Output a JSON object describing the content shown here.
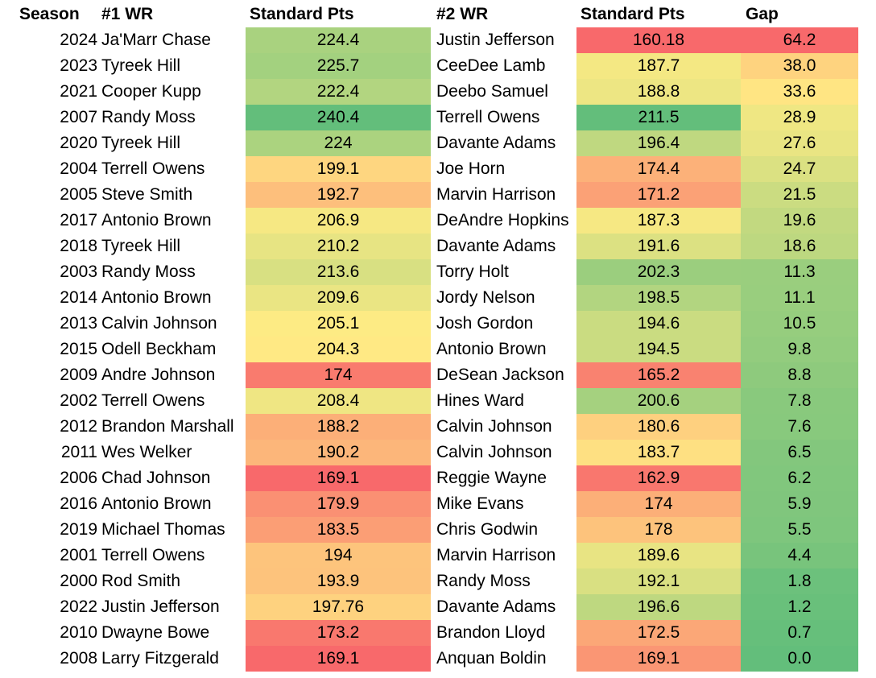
{
  "headers": {
    "season": "Season",
    "wr1": "#1 WR",
    "pts1": "Standard Pts",
    "wr2": "#2 WR",
    "pts2": "Standard Pts",
    "gap": "Gap"
  },
  "chart_data": {
    "type": "table",
    "columns": [
      "Season",
      "#1 WR",
      "Standard Pts",
      "#2 WR",
      "Standard Pts",
      "Gap"
    ],
    "rows": [
      {
        "season": "2024",
        "wr1": "Ja'Marr Chase",
        "pts1": "224.4",
        "wr2": "Justin Jefferson",
        "pts2": "160.18",
        "gap": "64.2"
      },
      {
        "season": "2023",
        "wr1": "Tyreek Hill",
        "pts1": "225.7",
        "wr2": "CeeDee Lamb",
        "pts2": "187.7",
        "gap": "38.0"
      },
      {
        "season": "2021",
        "wr1": "Cooper Kupp",
        "pts1": "222.4",
        "wr2": "Deebo Samuel",
        "pts2": "188.8",
        "gap": "33.6"
      },
      {
        "season": "2007",
        "wr1": "Randy Moss",
        "pts1": "240.4",
        "wr2": "Terrell Owens",
        "pts2": "211.5",
        "gap": "28.9"
      },
      {
        "season": "2020",
        "wr1": "Tyreek Hill",
        "pts1": "224",
        "wr2": "Davante Adams",
        "pts2": "196.4",
        "gap": "27.6"
      },
      {
        "season": "2004",
        "wr1": "Terrell Owens",
        "pts1": "199.1",
        "wr2": "Joe Horn",
        "pts2": "174.4",
        "gap": "24.7"
      },
      {
        "season": "2005",
        "wr1": "Steve Smith",
        "pts1": "192.7",
        "wr2": "Marvin Harrison",
        "pts2": "171.2",
        "gap": "21.5"
      },
      {
        "season": "2017",
        "wr1": "Antonio Brown",
        "pts1": "206.9",
        "wr2": "DeAndre Hopkins",
        "pts2": "187.3",
        "gap": "19.6"
      },
      {
        "season": "2018",
        "wr1": "Tyreek Hill",
        "pts1": "210.2",
        "wr2": "Davante Adams",
        "pts2": "191.6",
        "gap": "18.6"
      },
      {
        "season": "2003",
        "wr1": "Randy Moss",
        "pts1": "213.6",
        "wr2": "Torry Holt",
        "pts2": "202.3",
        "gap": "11.3"
      },
      {
        "season": "2014",
        "wr1": "Antonio Brown",
        "pts1": "209.6",
        "wr2": "Jordy Nelson",
        "pts2": "198.5",
        "gap": "11.1"
      },
      {
        "season": "2013",
        "wr1": "Calvin Johnson",
        "pts1": "205.1",
        "wr2": "Josh Gordon",
        "pts2": "194.6",
        "gap": "10.5"
      },
      {
        "season": "2015",
        "wr1": "Odell Beckham",
        "pts1": "204.3",
        "wr2": "Antonio Brown",
        "pts2": "194.5",
        "gap": "9.8"
      },
      {
        "season": "2009",
        "wr1": "Andre Johnson",
        "pts1": "174",
        "wr2": "DeSean Jackson",
        "pts2": "165.2",
        "gap": "8.8"
      },
      {
        "season": "2002",
        "wr1": "Terrell Owens",
        "pts1": "208.4",
        "wr2": "Hines Ward",
        "pts2": "200.6",
        "gap": "7.8"
      },
      {
        "season": "2012",
        "wr1": "Brandon Marshall",
        "pts1": "188.2",
        "wr2": "Calvin Johnson",
        "pts2": "180.6",
        "gap": "7.6"
      },
      {
        "season": "2011",
        "wr1": "Wes Welker",
        "pts1": "190.2",
        "wr2": "Calvin Johnson",
        "pts2": "183.7",
        "gap": "6.5"
      },
      {
        "season": "2006",
        "wr1": "Chad Johnson",
        "pts1": "169.1",
        "wr2": "Reggie Wayne",
        "pts2": "162.9",
        "gap": "6.2"
      },
      {
        "season": "2016",
        "wr1": "Antonio Brown",
        "pts1": "179.9",
        "wr2": "Mike Evans",
        "pts2": "174",
        "gap": "5.9"
      },
      {
        "season": "2019",
        "wr1": "Michael Thomas",
        "pts1": "183.5",
        "wr2": "Chris Godwin",
        "pts2": "178",
        "gap": "5.5"
      },
      {
        "season": "2001",
        "wr1": "Terrell Owens",
        "pts1": "194",
        "wr2": "Marvin Harrison",
        "pts2": "189.6",
        "gap": "4.4"
      },
      {
        "season": "2000",
        "wr1": "Rod Smith",
        "pts1": "193.9",
        "wr2": "Randy Moss",
        "pts2": "192.1",
        "gap": "1.8"
      },
      {
        "season": "2022",
        "wr1": "Justin Jefferson",
        "pts1": "197.76",
        "wr2": "Davante Adams",
        "pts2": "196.6",
        "gap": "1.2"
      },
      {
        "season": "2010",
        "wr1": "Dwayne Bowe",
        "pts1": "173.2",
        "wr2": "Brandon Lloyd",
        "pts2": "172.5",
        "gap": "0.7"
      },
      {
        "season": "2008",
        "wr1": "Larry Fitzgerald",
        "pts1": "169.1",
        "wr2": "Anquan Boldin",
        "pts2": "169.1",
        "gap": "0.0"
      }
    ],
    "color_scales": {
      "pts1": {
        "low": "#f8696b",
        "mid": "#ffeb84",
        "high": "#63be7b"
      },
      "pts2": {
        "low": "#f8696b",
        "mid": "#ffeb84",
        "high": "#63be7b"
      },
      "gap": {
        "low": "#63be7b",
        "mid": "#ffeb84",
        "high": "#f8696b"
      }
    }
  }
}
